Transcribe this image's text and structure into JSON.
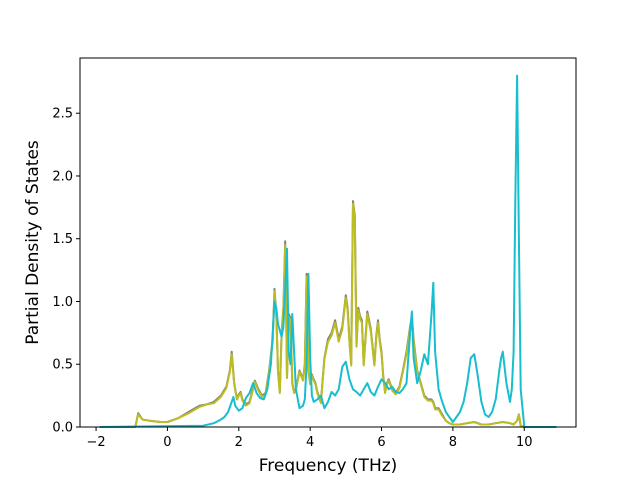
{
  "chart_data": {
    "type": "line",
    "xlabel": "Frequency (THz)",
    "ylabel": "Partial Density of States",
    "xlim": [
      -2.45,
      11.45
    ],
    "ylim": [
      0,
      2.94
    ],
    "xticks": [
      "−2",
      "0",
      "2",
      "4",
      "6",
      "8",
      "10"
    ],
    "xtick_values": [
      -2,
      0,
      2,
      4,
      6,
      8,
      10
    ],
    "yticks": [
      "0.0",
      "0.5",
      "1.0",
      "1.5",
      "2.0",
      "2.5"
    ],
    "ytick_values": [
      0,
      0.5,
      1.0,
      1.5,
      2.0,
      2.5
    ],
    "grid": false,
    "series": [
      {
        "color": "#7f7f7f",
        "x": [
          -1.9,
          -0.9,
          -0.82,
          -0.7,
          -0.5,
          -0.2,
          0.0,
          0.3,
          0.6,
          0.9,
          1.1,
          1.3,
          1.5,
          1.65,
          1.75,
          1.8,
          1.87,
          1.95,
          2.0,
          2.05,
          2.1,
          2.2,
          2.3,
          2.4,
          2.45,
          2.55,
          2.65,
          2.75,
          2.85,
          2.95,
          3.0,
          3.05,
          3.1,
          3.15,
          3.2,
          3.25,
          3.3,
          3.35,
          3.4,
          3.45,
          3.5,
          3.55,
          3.6,
          3.7,
          3.8,
          3.85,
          3.9,
          3.95,
          4.0,
          4.05,
          4.1,
          4.15,
          4.2,
          4.3,
          4.4,
          4.5,
          4.6,
          4.7,
          4.8,
          4.9,
          5.0,
          5.05,
          5.1,
          5.15,
          5.2,
          5.25,
          5.3,
          5.35,
          5.4,
          5.45,
          5.5,
          5.6,
          5.7,
          5.8,
          5.85,
          5.9,
          5.95,
          6.0,
          6.05,
          6.1,
          6.15,
          6.2,
          6.3,
          6.4,
          6.5,
          6.6,
          6.7,
          6.8,
          6.85,
          6.9,
          7.0,
          7.1,
          7.2,
          7.3,
          7.4,
          7.45,
          7.5,
          7.6,
          7.7,
          7.8,
          7.9,
          8.0,
          8.2,
          8.4,
          8.6,
          8.8,
          9.0,
          9.2,
          9.4,
          9.6,
          9.7,
          9.8,
          9.85,
          9.9,
          10.0,
          10.9
        ],
        "y": [
          0,
          0,
          0.11,
          0.06,
          0.05,
          0.04,
          0.04,
          0.07,
          0.12,
          0.17,
          0.18,
          0.2,
          0.25,
          0.32,
          0.45,
          0.6,
          0.35,
          0.22,
          0.26,
          0.28,
          0.22,
          0.18,
          0.2,
          0.31,
          0.37,
          0.3,
          0.25,
          0.27,
          0.45,
          0.7,
          1.1,
          0.9,
          0.45,
          0.28,
          0.75,
          0.95,
          1.48,
          0.4,
          0.9,
          0.87,
          0.35,
          0.28,
          0.3,
          0.45,
          0.38,
          0.5,
          1.22,
          0.45,
          0.35,
          0.42,
          0.38,
          0.35,
          0.28,
          0.2,
          0.55,
          0.7,
          0.75,
          0.85,
          0.7,
          0.8,
          1.05,
          0.95,
          0.7,
          0.5,
          1.8,
          1.68,
          0.65,
          0.95,
          0.88,
          0.85,
          0.5,
          0.92,
          0.78,
          0.5,
          0.72,
          0.85,
          0.7,
          0.6,
          0.4,
          0.28,
          0.35,
          0.38,
          0.3,
          0.27,
          0.32,
          0.45,
          0.6,
          0.8,
          0.88,
          0.7,
          0.45,
          0.35,
          0.25,
          0.22,
          0.22,
          0.2,
          0.15,
          0.15,
          0.1,
          0.05,
          0.03,
          0.02,
          0.02,
          0.03,
          0.04,
          0.02,
          0.02,
          0.03,
          0.04,
          0.03,
          0.02,
          0.05,
          0.1,
          0.01,
          0,
          0
        ]
      },
      {
        "color": "#bcbd22",
        "x": [
          -1.9,
          -0.9,
          -0.82,
          -0.7,
          -0.5,
          -0.2,
          0.0,
          0.3,
          0.6,
          0.9,
          1.1,
          1.3,
          1.5,
          1.65,
          1.75,
          1.8,
          1.87,
          1.95,
          2.0,
          2.05,
          2.1,
          2.2,
          2.3,
          2.4,
          2.45,
          2.55,
          2.65,
          2.75,
          2.85,
          2.95,
          3.0,
          3.05,
          3.1,
          3.15,
          3.2,
          3.25,
          3.3,
          3.35,
          3.4,
          3.45,
          3.5,
          3.55,
          3.6,
          3.7,
          3.8,
          3.85,
          3.9,
          3.95,
          4.0,
          4.05,
          4.1,
          4.15,
          4.2,
          4.3,
          4.4,
          4.5,
          4.6,
          4.7,
          4.8,
          4.9,
          5.0,
          5.05,
          5.1,
          5.15,
          5.2,
          5.25,
          5.3,
          5.35,
          5.4,
          5.45,
          5.5,
          5.6,
          5.7,
          5.8,
          5.85,
          5.9,
          5.95,
          6.0,
          6.05,
          6.1,
          6.15,
          6.2,
          6.3,
          6.4,
          6.5,
          6.6,
          6.7,
          6.8,
          6.85,
          6.9,
          7.0,
          7.1,
          7.2,
          7.3,
          7.4,
          7.45,
          7.5,
          7.6,
          7.7,
          7.8,
          7.9,
          8.0,
          8.2,
          8.4,
          8.6,
          8.8,
          9.0,
          9.2,
          9.4,
          9.6,
          9.7,
          9.8,
          9.85,
          9.9,
          10.0,
          10.9
        ],
        "y": [
          0,
          0,
          0.1,
          0.06,
          0.05,
          0.04,
          0.04,
          0.07,
          0.11,
          0.16,
          0.18,
          0.19,
          0.24,
          0.31,
          0.44,
          0.58,
          0.34,
          0.22,
          0.25,
          0.27,
          0.21,
          0.17,
          0.19,
          0.3,
          0.36,
          0.29,
          0.24,
          0.26,
          0.44,
          0.68,
          1.08,
          0.88,
          0.44,
          0.27,
          0.73,
          0.92,
          1.45,
          0.39,
          0.88,
          0.85,
          0.34,
          0.27,
          0.29,
          0.44,
          0.37,
          0.48,
          1.2,
          0.44,
          0.34,
          0.41,
          0.37,
          0.34,
          0.27,
          0.19,
          0.54,
          0.68,
          0.73,
          0.83,
          0.68,
          0.78,
          1.03,
          0.93,
          0.68,
          0.49,
          1.78,
          1.65,
          0.64,
          0.93,
          0.86,
          0.83,
          0.49,
          0.9,
          0.76,
          0.49,
          0.7,
          0.83,
          0.68,
          0.58,
          0.39,
          0.27,
          0.34,
          0.37,
          0.29,
          0.26,
          0.31,
          0.44,
          0.58,
          0.78,
          0.86,
          0.68,
          0.44,
          0.34,
          0.24,
          0.21,
          0.21,
          0.19,
          0.14,
          0.14,
          0.09,
          0.05,
          0.03,
          0.02,
          0.02,
          0.03,
          0.04,
          0.02,
          0.02,
          0.03,
          0.04,
          0.03,
          0.02,
          0.05,
          0.1,
          0.01,
          0,
          0
        ]
      },
      {
        "color": "#17becf",
        "x": [
          -1.9,
          1.0,
          1.3,
          1.5,
          1.6,
          1.7,
          1.8,
          1.85,
          1.9,
          2.0,
          2.1,
          2.2,
          2.3,
          2.4,
          2.5,
          2.6,
          2.7,
          2.8,
          2.9,
          2.95,
          3.0,
          3.05,
          3.1,
          3.2,
          3.25,
          3.3,
          3.35,
          3.4,
          3.45,
          3.5,
          3.55,
          3.6,
          3.7,
          3.8,
          3.85,
          3.9,
          3.95,
          4.0,
          4.05,
          4.1,
          4.2,
          4.3,
          4.4,
          4.5,
          4.6,
          4.7,
          4.8,
          4.9,
          5.0,
          5.1,
          5.2,
          5.3,
          5.4,
          5.5,
          5.6,
          5.7,
          5.8,
          5.9,
          6.0,
          6.1,
          6.2,
          6.3,
          6.4,
          6.5,
          6.6,
          6.7,
          6.8,
          6.85,
          6.9,
          7.0,
          7.1,
          7.2,
          7.3,
          7.4,
          7.45,
          7.5,
          7.6,
          7.7,
          7.8,
          7.9,
          8.0,
          8.1,
          8.2,
          8.3,
          8.4,
          8.5,
          8.6,
          8.7,
          8.8,
          8.9,
          9.0,
          9.1,
          9.2,
          9.3,
          9.35,
          9.4,
          9.5,
          9.6,
          9.65,
          9.7,
          9.75,
          9.8,
          9.85,
          9.9,
          10.0,
          10.9
        ],
        "y": [
          0,
          0.01,
          0.03,
          0.06,
          0.08,
          0.12,
          0.2,
          0.24,
          0.17,
          0.13,
          0.15,
          0.23,
          0.27,
          0.35,
          0.27,
          0.23,
          0.22,
          0.3,
          0.5,
          0.75,
          1.0,
          0.95,
          0.82,
          0.72,
          0.8,
          1.1,
          1.42,
          0.6,
          0.5,
          0.9,
          0.6,
          0.3,
          0.15,
          0.17,
          0.22,
          0.5,
          1.22,
          0.55,
          0.25,
          0.2,
          0.22,
          0.25,
          0.15,
          0.2,
          0.28,
          0.25,
          0.3,
          0.48,
          0.52,
          0.38,
          0.3,
          0.28,
          0.25,
          0.3,
          0.35,
          0.28,
          0.25,
          0.32,
          0.38,
          0.35,
          0.3,
          0.32,
          0.28,
          0.27,
          0.3,
          0.35,
          0.75,
          0.92,
          0.55,
          0.35,
          0.45,
          0.58,
          0.5,
          0.9,
          1.15,
          0.6,
          0.3,
          0.2,
          0.12,
          0.08,
          0.04,
          0.08,
          0.12,
          0.2,
          0.35,
          0.55,
          0.58,
          0.4,
          0.2,
          0.1,
          0.08,
          0.12,
          0.22,
          0.45,
          0.55,
          0.6,
          0.35,
          0.2,
          0.3,
          0.6,
          1.8,
          2.8,
          1.5,
          0.3,
          0.0,
          0.0
        ]
      }
    ]
  }
}
